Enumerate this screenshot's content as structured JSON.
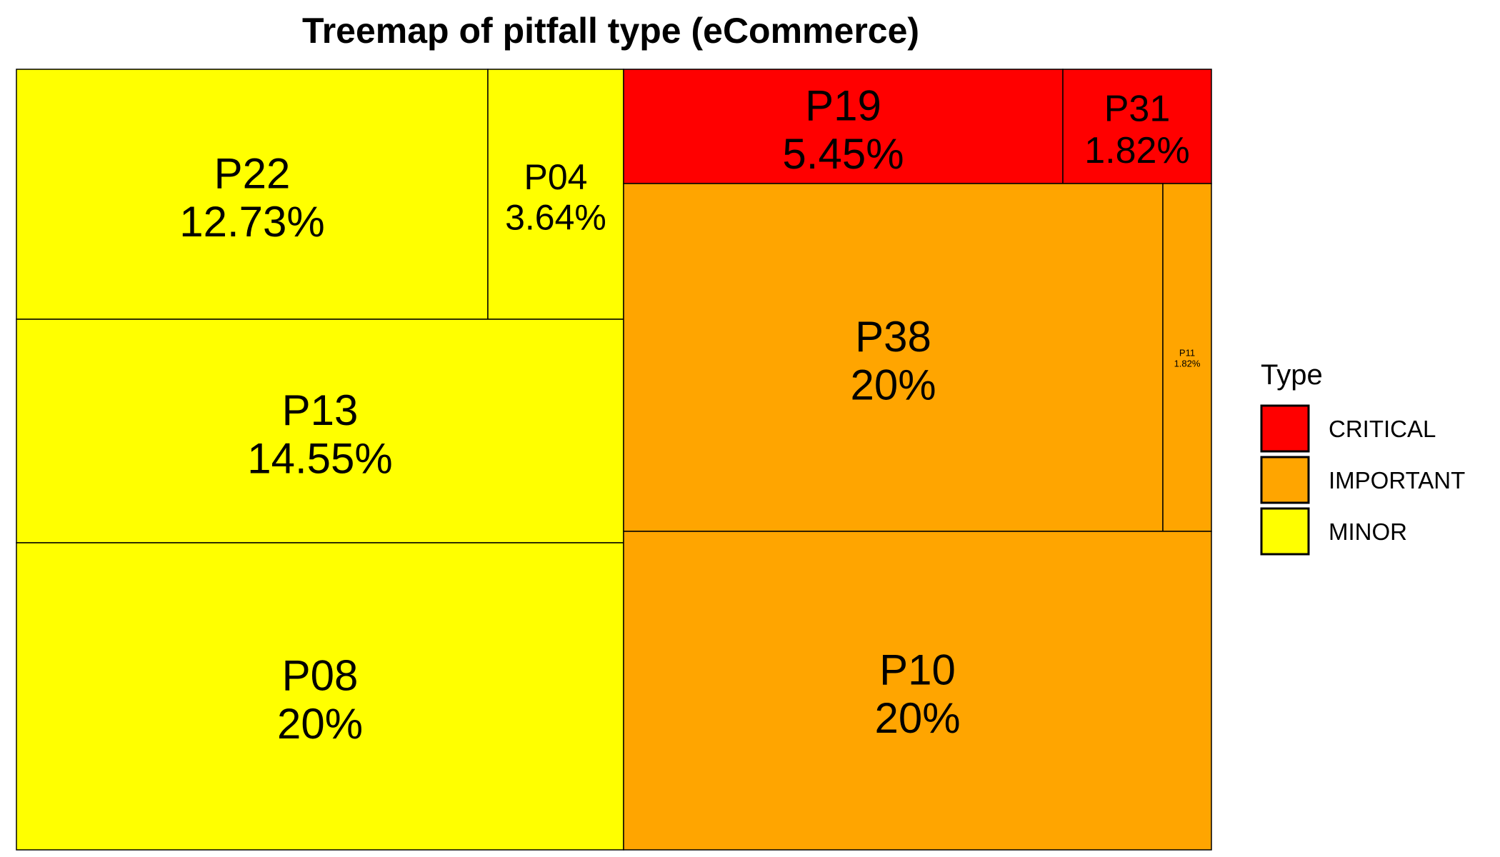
{
  "chart_data": {
    "type": "treemap",
    "title": "Treemap of pitfall type (eCommerce)",
    "legend": {
      "title": "Type",
      "position": "right",
      "entries": [
        {
          "label": "CRITICAL",
          "color": "#ff0000"
        },
        {
          "label": "IMPORTANT",
          "color": "#ffa500"
        },
        {
          "label": "MINOR",
          "color": "#ffff00"
        }
      ]
    },
    "items": [
      {
        "name": "P22",
        "value_label": "12.73%",
        "value": 12.73,
        "group": "MINOR"
      },
      {
        "name": "P04",
        "value_label": "3.64%",
        "value": 3.64,
        "group": "MINOR"
      },
      {
        "name": "P13",
        "value_label": "14.55%",
        "value": 14.55,
        "group": "MINOR"
      },
      {
        "name": "P08",
        "value_label": "20%",
        "value": 20,
        "group": "MINOR"
      },
      {
        "name": "P19",
        "value_label": "5.45%",
        "value": 5.45,
        "group": "CRITICAL"
      },
      {
        "name": "P31",
        "value_label": "1.82%",
        "value": 1.82,
        "group": "CRITICAL"
      },
      {
        "name": "P38",
        "value_label": "20%",
        "value": 20,
        "group": "IMPORTANT"
      },
      {
        "name": "P11",
        "value_label": "1.82%",
        "value": 1.82,
        "group": "IMPORTANT"
      },
      {
        "name": "P10",
        "value_label": "20%",
        "value": 20,
        "group": "IMPORTANT"
      }
    ]
  }
}
